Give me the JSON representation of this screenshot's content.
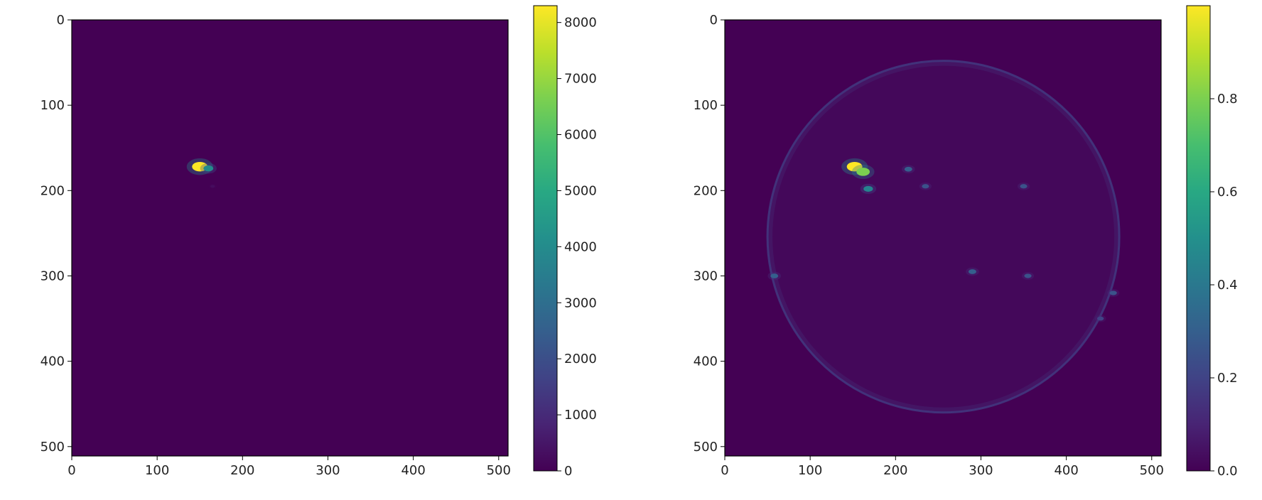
{
  "chart_data": [
    {
      "type": "heatmap",
      "title": "",
      "xlabel": "",
      "ylabel": "",
      "xlim": [
        0,
        511
      ],
      "ylim": [
        511,
        0
      ],
      "xticks": [
        0,
        100,
        200,
        300,
        400,
        500
      ],
      "yticks": [
        0,
        100,
        200,
        300,
        400,
        500
      ],
      "colormap": "viridis",
      "background_color": "#440154",
      "colorbar": {
        "min": 0,
        "max": 8300,
        "ticks": [
          0,
          1000,
          2000,
          3000,
          4000,
          5000,
          6000,
          7000,
          8000
        ]
      },
      "features": [
        {
          "x": 150,
          "y": 172,
          "value": 8300
        },
        {
          "x": 160,
          "y": 174,
          "value": 4000
        },
        {
          "x": 165,
          "y": 195,
          "value": 250
        }
      ]
    },
    {
      "type": "heatmap",
      "title": "",
      "xlabel": "",
      "ylabel": "",
      "xlim": [
        0,
        511
      ],
      "ylim": [
        511,
        0
      ],
      "xticks": [
        0,
        100,
        200,
        300,
        400,
        500
      ],
      "yticks": [
        0,
        100,
        200,
        300,
        400,
        500
      ],
      "colormap": "viridis",
      "background_color": "#440154",
      "colorbar": {
        "min": 0,
        "max": 1,
        "ticks": [
          "0.0",
          "0.2",
          "0.4",
          "0.6",
          "0.8"
        ]
      },
      "disk": {
        "center_x": 256,
        "center_y": 254,
        "radius": 206,
        "limb_value": 0.18,
        "interior_value": 0.06
      },
      "features": [
        {
          "x": 152,
          "y": 172,
          "value": 1.0
        },
        {
          "x": 162,
          "y": 178,
          "value": 0.8
        },
        {
          "x": 168,
          "y": 198,
          "value": 0.45
        },
        {
          "x": 215,
          "y": 175,
          "value": 0.3
        },
        {
          "x": 235,
          "y": 195,
          "value": 0.25
        },
        {
          "x": 350,
          "y": 195,
          "value": 0.25
        },
        {
          "x": 290,
          "y": 295,
          "value": 0.3
        },
        {
          "x": 355,
          "y": 300,
          "value": 0.25
        },
        {
          "x": 58,
          "y": 300,
          "value": 0.3
        },
        {
          "x": 455,
          "y": 320,
          "value": 0.25
        },
        {
          "x": 440,
          "y": 350,
          "value": 0.2
        }
      ]
    }
  ]
}
